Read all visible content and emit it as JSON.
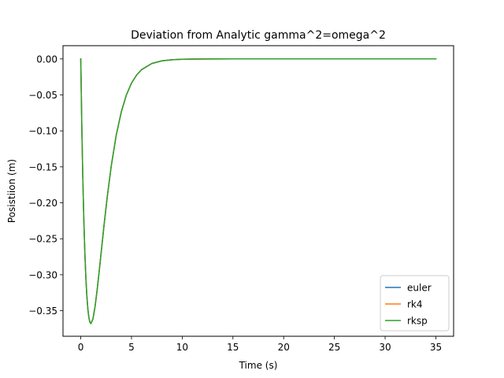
{
  "chart_data": {
    "type": "line",
    "title": "Deviation from Analytic gamma^2=omega^2",
    "xlabel": "Time (s)",
    "ylabel": "Posistiion (m)",
    "xlim": [
      -1.75,
      36.75
    ],
    "ylim": [
      -0.3855,
      0.0184
    ],
    "xticks": [
      0,
      5,
      10,
      15,
      20,
      25,
      30,
      35
    ],
    "xtick_labels": [
      "0",
      "5",
      "10",
      "15",
      "20",
      "25",
      "30",
      "35"
    ],
    "yticks": [
      0.0,
      -0.05,
      -0.1,
      -0.15,
      -0.2,
      -0.25,
      -0.3,
      -0.35
    ],
    "ytick_labels": [
      "0.00",
      "−0.05",
      "−0.10",
      "−0.15",
      "−0.20",
      "−0.25",
      "−0.30",
      "−0.35"
    ],
    "grid": false,
    "legend_position": "lower-right",
    "series": [
      {
        "name": "euler",
        "color": "#1f77b4",
        "x": [
          0,
          0.1,
          0.2,
          0.3,
          0.4,
          0.5,
          0.6,
          0.7,
          0.8,
          0.9,
          1.0,
          1.2,
          1.4,
          1.6,
          1.8,
          2.0,
          2.3,
          2.6,
          3.0,
          3.5,
          4.0,
          4.5,
          5.0,
          5.5,
          6.0,
          7.0,
          8.0,
          9.0,
          10.0,
          12.0,
          15.0,
          20.0,
          25.0,
          30.0,
          35.0
        ],
        "y": [
          0,
          -0.0905,
          -0.1637,
          -0.2223,
          -0.2681,
          -0.3033,
          -0.3293,
          -0.3476,
          -0.3595,
          -0.3659,
          -0.3679,
          -0.3614,
          -0.3452,
          -0.323,
          -0.2975,
          -0.2707,
          -0.2305,
          -0.1931,
          -0.1494,
          -0.1057,
          -0.0733,
          -0.05,
          -0.0337,
          -0.0225,
          -0.0149,
          -0.0064,
          -0.0027,
          -0.0011,
          -0.0005,
          -0.0001,
          0,
          0,
          0,
          0,
          0
        ]
      },
      {
        "name": "rk4",
        "color": "#ff7f0e",
        "x": [
          0,
          0.1,
          0.2,
          0.3,
          0.4,
          0.5,
          0.6,
          0.7,
          0.8,
          0.9,
          1.0,
          1.2,
          1.4,
          1.6,
          1.8,
          2.0,
          2.3,
          2.6,
          3.0,
          3.5,
          4.0,
          4.5,
          5.0,
          5.5,
          6.0,
          7.0,
          8.0,
          9.0,
          10.0,
          12.0,
          15.0,
          20.0,
          25.0,
          30.0,
          35.0
        ],
        "y": [
          0,
          -0.0905,
          -0.1637,
          -0.2223,
          -0.2681,
          -0.3033,
          -0.3293,
          -0.3476,
          -0.3595,
          -0.3659,
          -0.3679,
          -0.3614,
          -0.3452,
          -0.323,
          -0.2975,
          -0.2707,
          -0.2305,
          -0.1931,
          -0.1494,
          -0.1057,
          -0.0733,
          -0.05,
          -0.0337,
          -0.0225,
          -0.0149,
          -0.0064,
          -0.0027,
          -0.0011,
          -0.0005,
          -0.0001,
          0,
          0,
          0,
          0,
          0
        ]
      },
      {
        "name": "rksp",
        "color": "#2ca02c",
        "x": [
          0,
          0.1,
          0.2,
          0.3,
          0.4,
          0.5,
          0.6,
          0.7,
          0.8,
          0.9,
          1.0,
          1.2,
          1.4,
          1.6,
          1.8,
          2.0,
          2.3,
          2.6,
          3.0,
          3.5,
          4.0,
          4.5,
          5.0,
          5.5,
          6.0,
          7.0,
          8.0,
          9.0,
          10.0,
          12.0,
          15.0,
          20.0,
          25.0,
          30.0,
          35.0
        ],
        "y": [
          0,
          -0.0905,
          -0.1637,
          -0.2223,
          -0.2681,
          -0.3033,
          -0.3293,
          -0.3476,
          -0.3595,
          -0.3659,
          -0.3679,
          -0.3614,
          -0.3452,
          -0.323,
          -0.2975,
          -0.2707,
          -0.2305,
          -0.1931,
          -0.1494,
          -0.1057,
          -0.0733,
          -0.05,
          -0.0337,
          -0.0225,
          -0.0149,
          -0.0064,
          -0.0027,
          -0.0011,
          -0.0005,
          -0.0001,
          0,
          0,
          0,
          0,
          0
        ]
      }
    ]
  }
}
